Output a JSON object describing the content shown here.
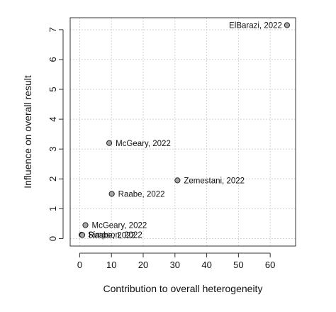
{
  "chart_data": {
    "type": "scatter",
    "title": "",
    "xlabel": "Contribution to overall heterogeneity",
    "ylabel": "Influence on overall result",
    "xlim": [
      -3,
      68
    ],
    "ylim": [
      -0.25,
      7.4
    ],
    "x_ticks": [
      0,
      10,
      20,
      30,
      40,
      50,
      60
    ],
    "y_ticks": [
      0,
      1,
      2,
      3,
      4,
      5,
      6,
      7
    ],
    "grid": true,
    "point_color": "#a6a6a6",
    "points": [
      {
        "label": "ElBarazi, 2022",
        "x": 65.3,
        "y": 7.15
      },
      {
        "label": "McGeary, 2022",
        "x": 9.3,
        "y": 3.2
      },
      {
        "label": "Zemestani, 2022",
        "x": 30.8,
        "y": 1.95
      },
      {
        "label": "Raabe, 2022",
        "x": 10.1,
        "y": 1.5
      },
      {
        "label": "McGeary, 2022",
        "x": 1.8,
        "y": 0.45
      },
      {
        "label": "Simpson, 2022",
        "x": 0.6,
        "y": 0.13
      },
      {
        "label": "Raabe, 2022",
        "x": 0.8,
        "y": 0.12
      }
    ]
  }
}
